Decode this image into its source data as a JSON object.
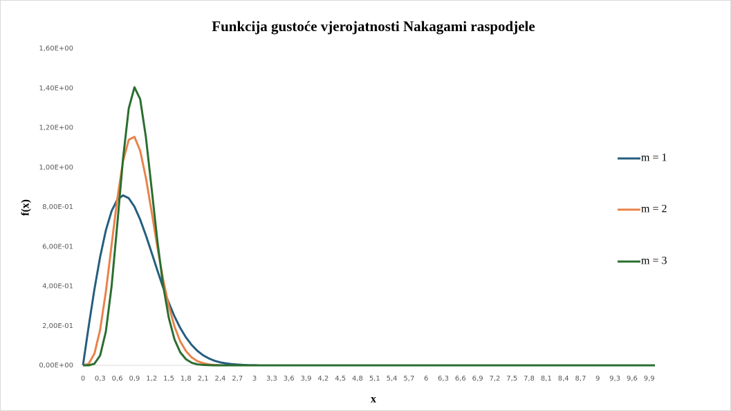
{
  "chart_data": {
    "type": "line",
    "title": "Funkcija gustoće vjerojatnosti Nakagami raspodjele",
    "x_label": "x",
    "y_label": "f(x)",
    "categories": [
      "0",
      null,
      null,
      "0,3",
      null,
      null,
      "0,6",
      null,
      null,
      "0,9",
      null,
      null,
      "1,2",
      null,
      null,
      "1,5",
      null,
      null,
      "1,8",
      null,
      null,
      "2,1",
      null,
      null,
      "2,4",
      null,
      null,
      "2,7",
      null,
      null,
      "3",
      null,
      null,
      "3,3",
      null,
      null,
      "3,6",
      null,
      null,
      "3,9",
      null,
      null,
      "4,2",
      null,
      null,
      "4,5",
      null,
      null,
      "4,8",
      null,
      null,
      "5,1",
      null,
      null,
      "5,4",
      null,
      null,
      "5,7",
      null,
      null,
      "6",
      null,
      null,
      "6,3",
      null,
      null,
      "6,6",
      null,
      null,
      "6,9",
      null,
      null,
      "7,2",
      null,
      null,
      "7,5",
      null,
      null,
      "7,8",
      null,
      null,
      "8,1",
      null,
      null,
      "8,4",
      null,
      null,
      "8,7",
      null,
      null,
      "9",
      null,
      null,
      "9,3",
      null,
      null,
      "9,6",
      null,
      null,
      "9,9",
      null
    ],
    "series": [
      {
        "name": "m = 1",
        "color": "#255e7e",
        "values": [
          0,
          0.198,
          0.384,
          0.548,
          0.682,
          0.779,
          0.837,
          0.858,
          0.844,
          0.801,
          0.736,
          0.656,
          0.569,
          0.48,
          0.394,
          0.316,
          0.247,
          0.189,
          0.141,
          0.103,
          0.073,
          0.051,
          0.035,
          0.023,
          0.015,
          0.01,
          0.006,
          0.004,
          0.002,
          0.001,
          0.001,
          0,
          0,
          0,
          0,
          0,
          0,
          0,
          0,
          0,
          0,
          0,
          0,
          0,
          0,
          0,
          0,
          0,
          0,
          0,
          0,
          0,
          0,
          0,
          0,
          0,
          0,
          0,
          0,
          0,
          0,
          0,
          0,
          0,
          0,
          0,
          0,
          0,
          0,
          0,
          0,
          0,
          0,
          0,
          0,
          0,
          0,
          0,
          0,
          0,
          0,
          0,
          0,
          0,
          0,
          0,
          0,
          0,
          0,
          0,
          0,
          0,
          0,
          0,
          0,
          0,
          0,
          0,
          0,
          0,
          0
        ]
      },
      {
        "name": "m = 2",
        "color": "#e8834a",
        "values": [
          0,
          0.008,
          0.059,
          0.18,
          0.372,
          0.607,
          0.841,
          1.03,
          1.139,
          1.154,
          1.083,
          0.947,
          0.776,
          0.598,
          0.436,
          0.3,
          0.196,
          0.121,
          0.072,
          0.04,
          0.021,
          0.011,
          0.005,
          0.002,
          0.001,
          0,
          0,
          0,
          0,
          0,
          0,
          0,
          0,
          0,
          0,
          0,
          0,
          0,
          0,
          0,
          0,
          0,
          0,
          0,
          0,
          0,
          0,
          0,
          0,
          0,
          0,
          0,
          0,
          0,
          0,
          0,
          0,
          0,
          0,
          0,
          0,
          0,
          0,
          0,
          0,
          0,
          0,
          0,
          0,
          0,
          0,
          0,
          0,
          0,
          0,
          0,
          0,
          0,
          0,
          0,
          0,
          0,
          0,
          0,
          0,
          0,
          0,
          0,
          0,
          0,
          0,
          0,
          0,
          0,
          0,
          0,
          0,
          0,
          0,
          0,
          0
        ]
      },
      {
        "name": "m = 3",
        "color": "#2a6e2f",
        "values": [
          0,
          0,
          0.008,
          0.05,
          0.171,
          0.399,
          0.713,
          1.043,
          1.297,
          1.404,
          1.344,
          1.152,
          0.893,
          0.63,
          0.406,
          0.24,
          0.131,
          0.066,
          0.031,
          0.013,
          0.005,
          0.002,
          0.001,
          0,
          0,
          0,
          0,
          0,
          0,
          0,
          0,
          0,
          0,
          0,
          0,
          0,
          0,
          0,
          0,
          0,
          0,
          0,
          0,
          0,
          0,
          0,
          0,
          0,
          0,
          0,
          0,
          0,
          0,
          0,
          0,
          0,
          0,
          0,
          0,
          0,
          0,
          0,
          0,
          0,
          0,
          0,
          0,
          0,
          0,
          0,
          0,
          0,
          0,
          0,
          0,
          0,
          0,
          0,
          0,
          0,
          0,
          0,
          0,
          0,
          0,
          0,
          0,
          0,
          0,
          0,
          0,
          0,
          0,
          0,
          0,
          0,
          0,
          0,
          0,
          0,
          0
        ]
      }
    ],
    "ylim": [
      0,
      1.6
    ],
    "yticks": [
      {
        "value": 0,
        "label": "0,00E+00"
      },
      {
        "value": 0.2,
        "label": "2,00E-01"
      },
      {
        "value": 0.4,
        "label": "4,00E-01"
      },
      {
        "value": 0.6,
        "label": "6,00E-01"
      },
      {
        "value": 0.8,
        "label": "8,00E-01"
      },
      {
        "value": 1.0,
        "label": "1,00E+00"
      },
      {
        "value": 1.2,
        "label": "1,20E+00"
      },
      {
        "value": 1.4,
        "label": "1,40E+00"
      },
      {
        "value": 1.6,
        "label": "1,60E+00"
      }
    ],
    "grid": false,
    "legend": "right"
  }
}
